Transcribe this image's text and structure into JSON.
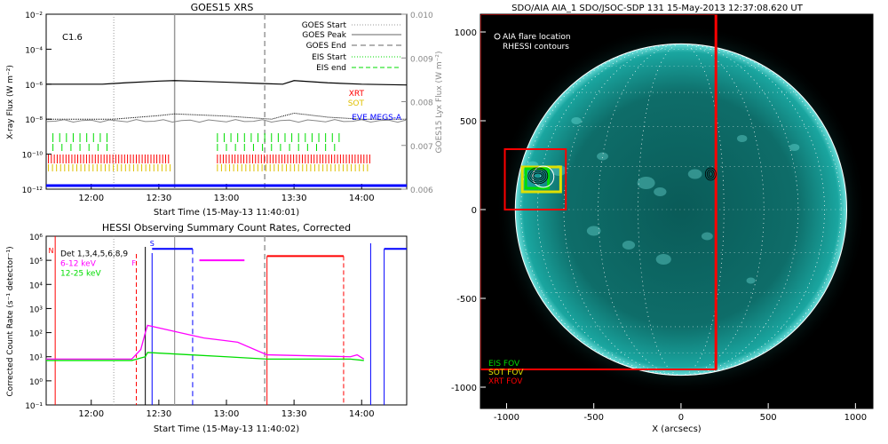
{
  "chart_data": [
    {
      "type": "line",
      "title": "GOES15 XRS",
      "xlabel": "Start Time (15-May-13 11:40:01)",
      "ylabel": "X-ray Flux (W m⁻²)",
      "ylabel_right": "GOES15 Lyx Flux (W m⁻²)",
      "xlim": [
        "11:40",
        "14:20"
      ],
      "x_ticks": [
        "12:00",
        "12:30",
        "13:00",
        "13:30",
        "14:00"
      ],
      "ylim": [
        1e-12,
        0.01
      ],
      "y_scale": "log",
      "y_ticks": [
        "10⁻¹²",
        "10⁻¹⁰",
        "10⁻⁸",
        "10⁻⁶",
        "10⁻⁴",
        "10⁻²"
      ],
      "ylim_right": [
        0.006,
        0.01
      ],
      "y_ticks_right": [
        "0.006",
        "0.007",
        "0.008",
        "0.009",
        "0.010"
      ],
      "annotation": "C1.6",
      "legend": {
        "goes_start": "GOES Start",
        "goes_peak": "GOES Peak",
        "goes_end": "GOES End",
        "eis_start": "EIS Start",
        "eis_end": "EIS end",
        "xrt": "XRT",
        "sot": "SOT",
        "eve": "EVE MEGS-A"
      },
      "event_markers": {
        "goes_start": "12:10",
        "goes_peak": "12:37",
        "goes_end": "13:17"
      },
      "series": [
        {
          "name": "GOES long",
          "x": [
            "11:40",
            "12:05",
            "12:15",
            "12:30",
            "12:37",
            "12:45",
            "13:00",
            "13:15",
            "13:25",
            "13:30",
            "13:45",
            "14:00",
            "14:20"
          ],
          "values": [
            1e-06,
            1e-06,
            1.2e-06,
            1.5e-06,
            1.6e-06,
            1.5e-06,
            1.3e-06,
            1.1e-06,
            1e-06,
            1.6e-06,
            1.2e-06,
            1e-06,
            9e-07
          ]
        },
        {
          "name": "GOES short",
          "x": [
            "11:40",
            "12:10",
            "12:30",
            "12:37",
            "13:00",
            "13:20",
            "13:30",
            "13:45",
            "14:00",
            "14:20"
          ],
          "values": [
            1e-08,
            1e-08,
            1.6e-08,
            2e-08,
            1.5e-08,
            1e-08,
            2.2e-08,
            1.3e-08,
            1e-08,
            1e-08
          ]
        }
      ],
      "colors": {
        "goes": "#000000",
        "eis": "#00dd00",
        "xrt": "#ff0000",
        "sot": "#e0c000",
        "eve": "#0000ff",
        "lya": "#888888"
      }
    },
    {
      "type": "line",
      "title": "HESSI Observing Summary Count Rates, Corrected",
      "xlabel": "Start Time (15-May-13 11:40:02)",
      "ylabel": "Corrected Count Rate (s⁻¹ detector⁻¹)",
      "xlim": [
        "11:40",
        "14:20"
      ],
      "x_ticks": [
        "12:00",
        "12:30",
        "13:00",
        "13:30",
        "14:00"
      ],
      "ylim": [
        0.1,
        1000000.0
      ],
      "y_scale": "log",
      "y_ticks": [
        "10⁻¹",
        "10⁰",
        "10¹",
        "10²",
        "10³",
        "10⁴",
        "10⁵",
        "10⁶"
      ],
      "legend": {
        "det": "Det 1,3,4,5,6,8,9",
        "band1": "6-12 keV",
        "band2": "12-25 keV"
      },
      "flags": {
        "n": "N",
        "f": "F",
        "s": "S"
      },
      "series": [
        {
          "name": "6-12 keV",
          "x": [
            "11:40",
            "11:50",
            "12:18",
            "12:22",
            "12:24",
            "12:25",
            "12:44",
            "12:50",
            "13:05",
            "13:18",
            "13:55",
            "13:58",
            "14:01"
          ],
          "values": [
            8,
            8,
            8,
            20,
            100,
            200,
            80,
            60,
            40,
            12,
            10,
            12,
            8
          ]
        },
        {
          "name": "12-25 keV",
          "x": [
            "11:40",
            "11:50",
            "12:18",
            "12:24",
            "12:25",
            "12:44",
            "13:00",
            "13:18",
            "13:55",
            "14:01"
          ],
          "values": [
            7,
            7,
            7,
            10,
            15,
            12,
            10,
            8,
            8,
            7
          ]
        }
      ],
      "colors": {
        "band1": "#ff00ff",
        "band2": "#00dd00",
        "flag": "#ff0000",
        "saa": "#0000ff"
      }
    },
    {
      "type": "scatter",
      "title": "SDO/AIA AIA_1 SDO/JSOC-SDP 131 15-May-2013 12:37:08.620 UT",
      "xlabel": "X (arcsecs)",
      "ylabel": "",
      "xlim": [
        -1150,
        1100
      ],
      "ylim": [
        -1120,
        1100
      ],
      "x_ticks": [
        "-1000",
        "-500",
        "0",
        "500",
        "1000"
      ],
      "y_ticks": [
        "-1000",
        "-500",
        "0",
        "500",
        "1000"
      ],
      "legend": {
        "flare": "AIA flare location",
        "rhessi": "RHESSI contours",
        "eis_fov": "EIS FOV",
        "sot_fov": "SOT FOV",
        "xrt_fov": "XRT FOV"
      },
      "solar_radius": 950,
      "flare_location": {
        "x": -790,
        "y": 185
      },
      "colors": {
        "disk": "#1aa6a0",
        "eis": "#00dd00",
        "sot": "#e0e000",
        "xrt": "#ff0000",
        "limb": "#ffffff"
      }
    }
  ]
}
